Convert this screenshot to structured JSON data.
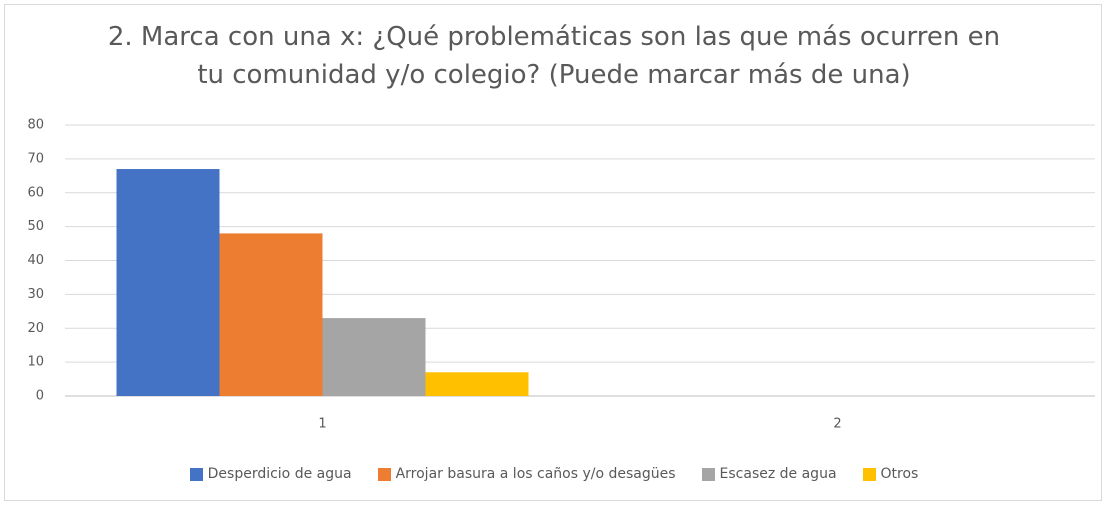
{
  "chart_data": {
    "type": "bar",
    "title": "2. Marca con una x: ¿Qué problemáticas son las que más ocurren en tu comunidad y/o colegio? (Puede marcar más de una)",
    "categories": [
      "1",
      "2"
    ],
    "series": [
      {
        "name": "Desperdicio de agua",
        "color": "#4472c4",
        "values": [
          67,
          null
        ]
      },
      {
        "name": "Arrojar basura a los caños y/o desagües",
        "color": "#ed7d31",
        "values": [
          48,
          null
        ]
      },
      {
        "name": "Escasez de agua",
        "color": "#a5a5a5",
        "values": [
          23,
          null
        ]
      },
      {
        "name": "Otros",
        "color": "#ffc000",
        "values": [
          7,
          null
        ]
      }
    ],
    "ylim": [
      0,
      80
    ],
    "yticks": [
      0,
      10,
      20,
      30,
      40,
      50,
      60,
      70,
      80
    ],
    "grid": true,
    "legend": "bottom"
  }
}
